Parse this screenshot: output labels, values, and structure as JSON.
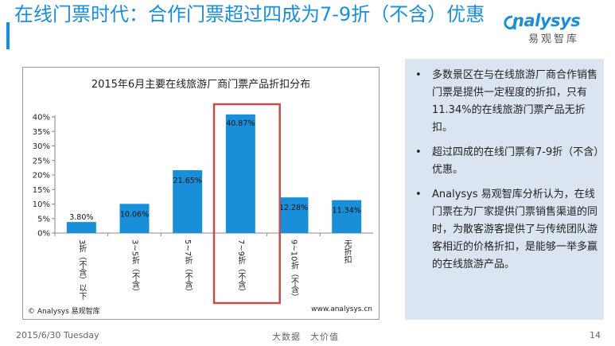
{
  "slide": {
    "title": "在线门票时代：合作门票超过四成为7-9折（不含）优惠",
    "logo_en": "nalysys",
    "logo_zh": "易观智库"
  },
  "bullets": [
    "多数景区在与在线旅游厂商合作销售门票是提供一定程度的折扣，只有11.34%的在线旅游门票产品无折扣。",
    "超过四成的在线门票有7-9折（不含）优惠。",
    "Analysys 易观智库分析认为，在线门票在为厂家提供门票销售渠道的同时，为散客游客提供了与传统团队游客相近的价格折扣，是能够一举多赢的在线旅游产品。"
  ],
  "footer": {
    "date": "2015/6/30 Tuesday",
    "center": "大数据　大价值",
    "page": "14"
  },
  "chart_data": {
    "type": "bar",
    "title": "2015年6月主要在线旅游厂商门票产品折扣分布",
    "categories": [
      "3折（不含）以下",
      "3~5折（不含）",
      "5~7折（不含）",
      "7~9折（不含）",
      "9~10折（不含）",
      "无折扣"
    ],
    "values": [
      3.8,
      10.06,
      21.65,
      40.87,
      12.28,
      11.34
    ],
    "value_labels": [
      "3.80%",
      "10.06%",
      "21.65%",
      "40.87%",
      "12.28%",
      "11.34%"
    ],
    "ylim": [
      0,
      40
    ],
    "yticks": [
      "0%",
      "5%",
      "10%",
      "15%",
      "20%",
      "25%",
      "30%",
      "35%",
      "40%"
    ],
    "highlight_index": 3,
    "bar_color": "#1a8fd9",
    "highlight_color": "#c0504d",
    "grid": false,
    "copyright": "© Analysys 易观智库",
    "source": "www.analysys.cn"
  }
}
